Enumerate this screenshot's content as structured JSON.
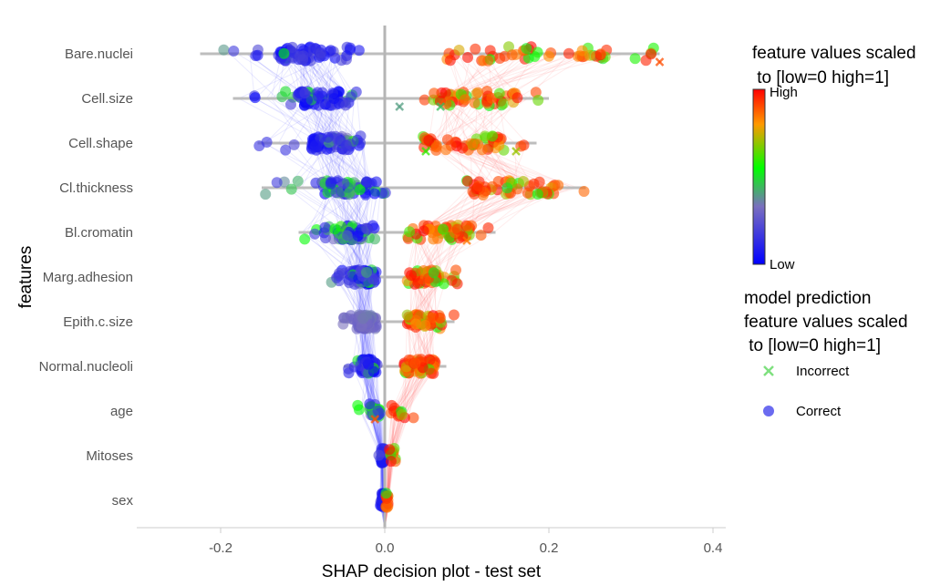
{
  "chart_data": {
    "type": "scatter",
    "title": "",
    "xlabel": "SHAP decision plot - test set",
    "ylabel": "features",
    "xlim": [
      -0.3,
      0.42
    ],
    "x_ticks": [
      "-0.2",
      "0.0",
      "0.2",
      "0.4"
    ],
    "x_tick_values": [
      -0.2,
      0.0,
      0.2,
      0.4
    ],
    "grid": false,
    "reference_line_x": 0.0,
    "features": [
      "Bare.nuclei",
      "Cell.size",
      "Cell.shape",
      "Cl.thickness",
      "Bl.cromatin",
      "Marg.adhesion",
      "Epith.c.size",
      "Normal.nucleoli",
      "age",
      "Mitoses",
      "sex"
    ],
    "feature_spread": [
      {
        "feature": "Bare.nuclei",
        "low_min": -0.225,
        "low_max": -0.01,
        "high_min": 0.01,
        "high_max": 0.335
      },
      {
        "feature": "Cell.size",
        "low_min": -0.185,
        "low_max": -0.01,
        "high_min": 0.01,
        "high_max": 0.2
      },
      {
        "feature": "Cell.shape",
        "low_min": -0.155,
        "low_max": -0.01,
        "high_min": 0.01,
        "high_max": 0.185
      },
      {
        "feature": "Cl.thickness",
        "low_min": -0.15,
        "low_max": 0.015,
        "high_min": 0.06,
        "high_max": 0.245
      },
      {
        "feature": "Bl.cromatin",
        "low_min": -0.105,
        "low_max": 0.0,
        "high_min": 0.0,
        "high_max": 0.135
      },
      {
        "feature": "Marg.adhesion",
        "low_min": -0.065,
        "low_max": -0.005,
        "high_min": 0.01,
        "high_max": 0.09
      },
      {
        "feature": "Epith.c.size",
        "low_min": -0.055,
        "low_max": -0.005,
        "high_min": 0.01,
        "high_max": 0.085
      },
      {
        "feature": "Normal.nucleoli",
        "low_min": -0.05,
        "low_max": -0.005,
        "high_min": 0.01,
        "high_max": 0.075
      },
      {
        "feature": "age",
        "low_min": -0.035,
        "low_max": 0.0,
        "high_min": 0.0,
        "high_max": 0.035
      },
      {
        "feature": "Mitoses",
        "low_min": -0.008,
        "low_max": 0.0,
        "high_min": 0.0,
        "high_max": 0.015
      },
      {
        "feature": "sex",
        "low_min": -0.006,
        "low_max": 0.0,
        "high_min": 0.0,
        "high_max": 0.006
      }
    ],
    "incorrect_points": [
      {
        "feature": "Bare.nuclei",
        "x": 0.335,
        "value": 0.9
      },
      {
        "feature": "Cell.size",
        "x": 0.018,
        "value": 0.4
      },
      {
        "feature": "Cell.size",
        "x": 0.068,
        "value": 0.45
      },
      {
        "feature": "Cell.shape",
        "x": 0.16,
        "value": 0.7
      },
      {
        "feature": "Cell.shape",
        "x": 0.05,
        "value": 0.6
      },
      {
        "feature": "Bl.cromatin",
        "x": 0.1,
        "value": 0.85
      },
      {
        "feature": "age",
        "x": -0.012,
        "value": 0.9
      }
    ],
    "colorbar": {
      "title_line1": "feature values scaled",
      "title_line2": " to [low=0 high=1]",
      "high_label": "High",
      "low_label": "Low",
      "colors": [
        "#0000ff",
        "#7a6fbf",
        "#00ff00",
        "#ff9900",
        "#ff0000"
      ]
    },
    "legend": {
      "title_line1": "model prediction",
      "title_line2": "feature values scaled",
      "title_line3": " to [low=0 high=1]",
      "items": [
        {
          "label": "Incorrect",
          "marker": "x",
          "color": "#7fe07f"
        },
        {
          "label": "Correct",
          "marker": "circle",
          "color": "#6b6bf0"
        }
      ]
    }
  }
}
